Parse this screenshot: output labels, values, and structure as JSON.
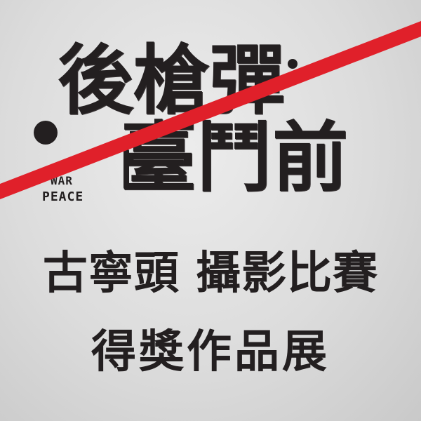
{
  "title": {
    "line1": "後槍彈",
    "line2": "臺鬥前"
  },
  "tagline": {
    "war": "WAR",
    "peace": "PEACE"
  },
  "subtitle": {
    "line1": "古寧頭 攝影比賽",
    "line2": "得獎作品展"
  },
  "colors": {
    "background": "#d6d6d6",
    "text": "#231f20",
    "strike": "#e0202a"
  }
}
